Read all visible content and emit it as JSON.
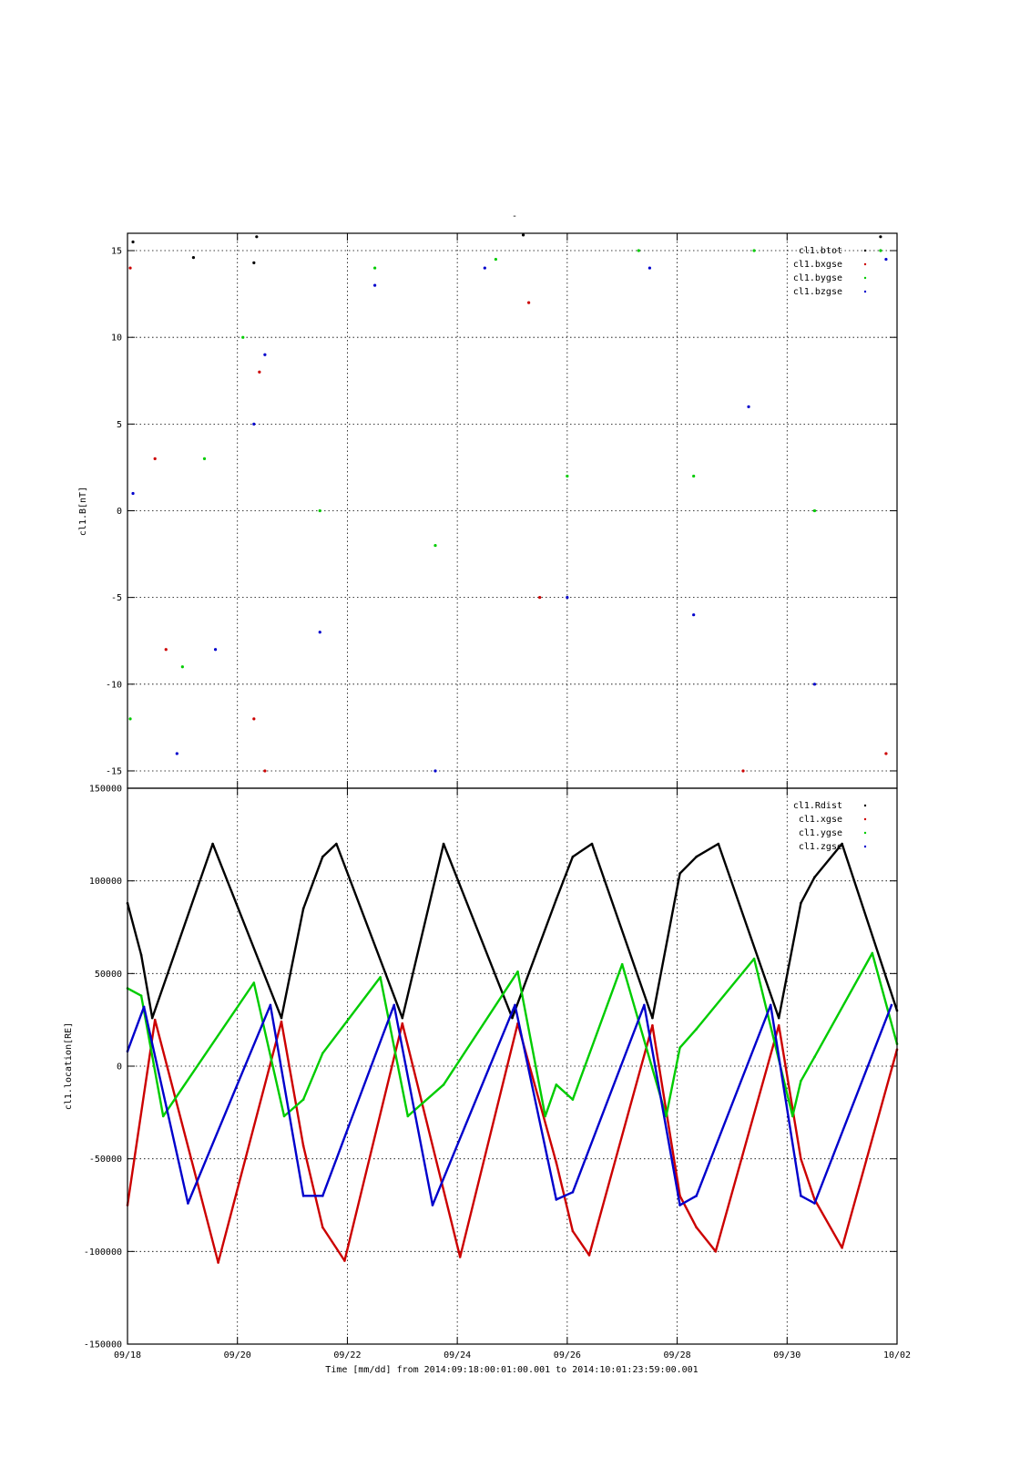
{
  "title": "-",
  "x_axis": {
    "label": "Time [mm/dd]  from 2014:09:18:00:01:00.001  to  2014:10:01:23:59:00.001",
    "ticks": [
      "09/18",
      "09/20",
      "09/22",
      "09/24",
      "09/26",
      "09/28",
      "09/30",
      "10/02"
    ]
  },
  "chart_data": [
    {
      "type": "scatter",
      "ylabel": "cl1.B[nT]",
      "xlim": [
        0,
        14
      ],
      "ylim": [
        -16,
        16
      ],
      "yticks": [
        "15",
        "10",
        "5",
        "0",
        "-5",
        "-10",
        "-15"
      ],
      "legend_placement": "top-right",
      "series": [
        {
          "name": "cl1.btot",
          "color": "#000000",
          "values": [
            [
              0.1,
              15.5
            ],
            [
              1.2,
              14.6
            ],
            [
              2.3,
              14.3
            ],
            [
              2.35,
              15.8
            ],
            [
              7.2,
              15.9
            ],
            [
              13.7,
              15.8
            ]
          ]
        },
        {
          "name": "cl1.bxgse",
          "color": "#cc0000",
          "values": [
            [
              0.05,
              14.0
            ],
            [
              0.5,
              3.0
            ],
            [
              0.7,
              -8.0
            ],
            [
              2.3,
              -12.0
            ],
            [
              2.4,
              8.0
            ],
            [
              2.5,
              -15.0
            ],
            [
              7.3,
              12.0
            ],
            [
              7.5,
              -5.0
            ],
            [
              11.2,
              -15.0
            ],
            [
              13.8,
              -14.0
            ]
          ]
        },
        {
          "name": "cl1.bygse",
          "color": "#00cc00",
          "values": [
            [
              0.05,
              -12.0
            ],
            [
              1.0,
              -9.0
            ],
            [
              1.4,
              3.0
            ],
            [
              2.1,
              10.0
            ],
            [
              3.5,
              0.0
            ],
            [
              4.5,
              14.0
            ],
            [
              5.6,
              -2.0
            ],
            [
              6.7,
              14.5
            ],
            [
              8.0,
              2.0
            ],
            [
              9.3,
              15.0
            ],
            [
              10.3,
              2.0
            ],
            [
              11.4,
              15.0
            ],
            [
              12.5,
              0.0
            ],
            [
              13.7,
              15.0
            ]
          ]
        },
        {
          "name": "cl1.bzgse",
          "color": "#0000cc",
          "values": [
            [
              0.1,
              1.0
            ],
            [
              0.9,
              -14.0
            ],
            [
              1.6,
              -8.0
            ],
            [
              2.3,
              5.0
            ],
            [
              2.5,
              9.0
            ],
            [
              3.5,
              -7.0
            ],
            [
              4.5,
              13.0
            ],
            [
              5.6,
              -15.0
            ],
            [
              6.5,
              14.0
            ],
            [
              8.0,
              -5.0
            ],
            [
              9.5,
              14.0
            ],
            [
              10.3,
              -6.0
            ],
            [
              11.3,
              6.0
            ],
            [
              12.5,
              -10.0
            ],
            [
              13.8,
              14.5
            ]
          ]
        }
      ]
    },
    {
      "type": "line",
      "ylabel": "cl1.location[RE]",
      "xlim": [
        0,
        14
      ],
      "ylim": [
        -150000,
        150000
      ],
      "yticks": [
        "150000",
        "100000",
        "50000",
        "0",
        "-50000",
        "-100000",
        "-150000"
      ],
      "legend_placement": "top-right",
      "series": [
        {
          "name": "cl1.Rdist",
          "color": "#000000",
          "values": [
            [
              0.0,
              88000
            ],
            [
              0.25,
              60000
            ],
            [
              0.45,
              26000
            ],
            [
              1.55,
              120000
            ],
            [
              2.8,
              26000
            ],
            [
              3.2,
              85000
            ],
            [
              3.55,
              113000
            ],
            [
              3.8,
              120000
            ],
            [
              5.0,
              26000
            ],
            [
              5.75,
              120000
            ],
            [
              7.0,
              26000
            ],
            [
              7.8,
              90000
            ],
            [
              8.1,
              113000
            ],
            [
              8.45,
              120000
            ],
            [
              9.55,
              26000
            ],
            [
              10.05,
              104000
            ],
            [
              10.35,
              113000
            ],
            [
              10.75,
              120000
            ],
            [
              11.85,
              26000
            ],
            [
              12.25,
              88000
            ],
            [
              12.5,
              102000
            ],
            [
              13.0,
              120000
            ],
            [
              14.0,
              30000
            ]
          ]
        },
        {
          "name": "cl1.xgse",
          "color": "#cc0000",
          "values": [
            [
              0.0,
              -75000
            ],
            [
              0.5,
              25000
            ],
            [
              1.65,
              -106000
            ],
            [
              2.8,
              24000
            ],
            [
              3.2,
              -43000
            ],
            [
              3.55,
              -87000
            ],
            [
              3.95,
              -105000
            ],
            [
              5.0,
              23000
            ],
            [
              6.05,
              -103000
            ],
            [
              7.1,
              23000
            ],
            [
              7.8,
              -52000
            ],
            [
              8.1,
              -89000
            ],
            [
              8.4,
              -102000
            ],
            [
              9.55,
              22000
            ],
            [
              10.05,
              -70000
            ],
            [
              10.35,
              -87000
            ],
            [
              10.7,
              -100000
            ],
            [
              11.85,
              22000
            ],
            [
              12.25,
              -50000
            ],
            [
              12.5,
              -72000
            ],
            [
              13.0,
              -98000
            ],
            [
              14.0,
              9000
            ]
          ]
        },
        {
          "name": "cl1.ygse",
          "color": "#00cc00",
          "values": [
            [
              0.0,
              42000
            ],
            [
              0.25,
              38000
            ],
            [
              0.65,
              -27000
            ],
            [
              2.3,
              45000
            ],
            [
              2.85,
              -27000
            ],
            [
              3.2,
              -18000
            ],
            [
              3.55,
              7000
            ],
            [
              4.6,
              48000
            ],
            [
              5.1,
              -27000
            ],
            [
              5.75,
              -10000
            ],
            [
              7.1,
              51000
            ],
            [
              7.6,
              -27000
            ],
            [
              7.8,
              -10000
            ],
            [
              8.1,
              -18000
            ],
            [
              9.0,
              55000
            ],
            [
              9.8,
              -27000
            ],
            [
              10.05,
              10000
            ],
            [
              10.35,
              20000
            ],
            [
              11.4,
              58000
            ],
            [
              12.1,
              -27000
            ],
            [
              12.25,
              -8000
            ],
            [
              12.5,
              5000
            ],
            [
              13.55,
              61000
            ],
            [
              14.0,
              12000
            ]
          ]
        },
        {
          "name": "cl1.zgse",
          "color": "#0000cc",
          "values": [
            [
              0.0,
              8000
            ],
            [
              0.3,
              32000
            ],
            [
              1.1,
              -74000
            ],
            [
              2.6,
              33000
            ],
            [
              3.2,
              -70000
            ],
            [
              3.55,
              -70000
            ],
            [
              4.85,
              33000
            ],
            [
              5.55,
              -75000
            ],
            [
              7.05,
              33000
            ],
            [
              7.8,
              -72000
            ],
            [
              8.1,
              -68000
            ],
            [
              9.4,
              33000
            ],
            [
              10.05,
              -75000
            ],
            [
              10.35,
              -70000
            ],
            [
              11.7,
              33000
            ],
            [
              12.25,
              -70000
            ],
            [
              12.5,
              -74000
            ],
            [
              13.9,
              33000
            ]
          ]
        }
      ]
    }
  ]
}
